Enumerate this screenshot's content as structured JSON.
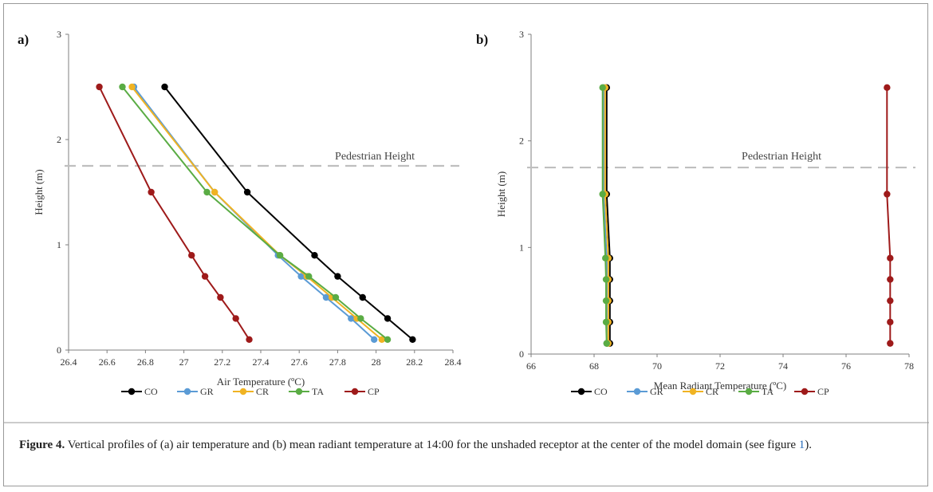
{
  "colors": {
    "CO": "#000000",
    "GR": "#5b9bd5",
    "CR": "#f0b323",
    "TA": "#5aac44",
    "CP": "#9e1a1a",
    "reference_line": "#bfbfbf",
    "axis": "#7f7f7f"
  },
  "chart_data": [
    {
      "type": "line",
      "panel_label": "a)",
      "title": "",
      "xlabel": "Air Temperature (ºC)",
      "ylabel": "Height (m)",
      "xlim": [
        26.4,
        28.4
      ],
      "ylim": [
        0,
        3
      ],
      "xticks": [
        26.4,
        26.6,
        26.8,
        27,
        27.2,
        27.4,
        27.6,
        27.8,
        28,
        28.2,
        28.4
      ],
      "xtick_labels": [
        "26.4",
        "26.6",
        "26.8",
        "27",
        "27.2",
        "27.4",
        "27.6",
        "27.8",
        "28",
        "28.2",
        "28.4"
      ],
      "yticks": [
        0,
        1,
        2,
        3
      ],
      "ytick_labels": [
        "0",
        "1",
        "2",
        "3"
      ],
      "grid": false,
      "legend_placement": "bottom",
      "reference_line": {
        "y": 1.75,
        "label": "Pedestrian Height"
      },
      "series": [
        {
          "name": "CO",
          "x": [
            28.19,
            28.06,
            27.93,
            27.8,
            27.68,
            27.33,
            26.9
          ],
          "y": [
            0.1,
            0.3,
            0.5,
            0.7,
            0.9,
            1.5,
            2.5
          ]
        },
        {
          "name": "GR",
          "x": [
            27.99,
            27.87,
            27.74,
            27.61,
            27.49,
            27.16,
            26.74
          ],
          "y": [
            0.1,
            0.3,
            0.5,
            0.7,
            0.9,
            1.5,
            2.5
          ]
        },
        {
          "name": "CR",
          "x": [
            28.03,
            27.9,
            27.77,
            27.64,
            27.5,
            27.16,
            26.73
          ],
          "y": [
            0.1,
            0.3,
            0.5,
            0.7,
            0.9,
            1.5,
            2.5
          ]
        },
        {
          "name": "TA",
          "x": [
            28.06,
            27.92,
            27.79,
            27.65,
            27.5,
            27.12,
            26.68
          ],
          "y": [
            0.1,
            0.3,
            0.5,
            0.7,
            0.9,
            1.5,
            2.5
          ]
        },
        {
          "name": "CP",
          "x": [
            27.34,
            27.27,
            27.19,
            27.11,
            27.04,
            26.83,
            26.56
          ],
          "y": [
            0.1,
            0.3,
            0.5,
            0.7,
            0.9,
            1.5,
            2.5
          ]
        }
      ]
    },
    {
      "type": "line",
      "panel_label": "b)",
      "title": "",
      "xlabel": "Mean Radiant Temperature (ºC)",
      "ylabel": "Height (m)",
      "xlim": [
        66,
        78
      ],
      "ylim": [
        0,
        3
      ],
      "xticks": [
        66,
        68,
        70,
        72,
        74,
        76,
        78
      ],
      "xtick_labels": [
        "66",
        "68",
        "70",
        "72",
        "74",
        "76",
        "78"
      ],
      "yticks": [
        0,
        1,
        2,
        3
      ],
      "ytick_labels": [
        "0",
        "1",
        "2",
        "3"
      ],
      "grid": false,
      "legend_placement": "bottom",
      "reference_line": {
        "y": 1.75,
        "label": "Pedestrian Height"
      },
      "series": [
        {
          "name": "CO",
          "x": [
            68.5,
            68.5,
            68.5,
            68.5,
            68.5,
            68.4,
            68.4
          ],
          "y": [
            0.1,
            0.3,
            0.5,
            0.7,
            0.9,
            1.5,
            2.5
          ]
        },
        {
          "name": "GR",
          "x": [
            68.4,
            68.4,
            68.4,
            68.4,
            68.4,
            68.3,
            68.3
          ],
          "y": [
            0.1,
            0.3,
            0.5,
            0.7,
            0.9,
            1.5,
            2.5
          ]
        },
        {
          "name": "CR",
          "x": [
            68.45,
            68.45,
            68.45,
            68.45,
            68.45,
            68.35,
            68.35
          ],
          "y": [
            0.1,
            0.3,
            0.5,
            0.7,
            0.9,
            1.5,
            2.5
          ]
        },
        {
          "name": "TA",
          "x": [
            68.4,
            68.38,
            68.38,
            68.38,
            68.36,
            68.27,
            68.27
          ],
          "y": [
            0.1,
            0.3,
            0.5,
            0.7,
            0.9,
            1.5,
            2.5
          ]
        },
        {
          "name": "CP",
          "x": [
            77.4,
            77.4,
            77.4,
            77.4,
            77.4,
            77.3,
            77.3
          ],
          "y": [
            0.1,
            0.3,
            0.5,
            0.7,
            0.9,
            1.5,
            2.5
          ]
        }
      ]
    }
  ],
  "caption": {
    "label": "Figure 4.",
    "text_before_ref": " Vertical profiles of (a) air temperature and (b) mean radiant temperature at 14:00 for the unshaded receptor at the center of the model domain (see figure ",
    "ref": "1",
    "text_after_ref": ")."
  }
}
